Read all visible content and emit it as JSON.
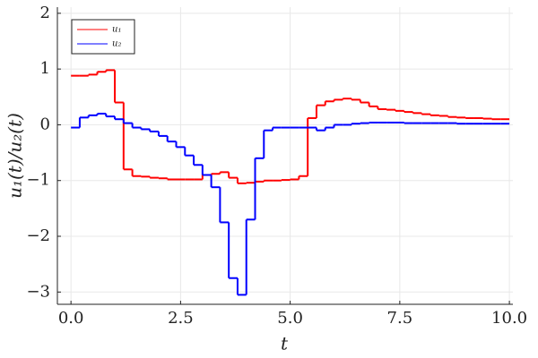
{
  "chart_data": {
    "type": "step",
    "x_label": "t",
    "y_label": "u₁(t)/u₂(t)",
    "x": [
      0,
      0.2,
      0.4,
      0.6,
      0.8,
      1.0,
      1.2,
      1.4,
      1.6,
      1.8,
      2.0,
      2.2,
      2.4,
      2.6,
      2.8,
      3.0,
      3.2,
      3.4,
      3.6,
      3.8,
      4.0,
      4.2,
      4.4,
      4.6,
      4.8,
      5.0,
      5.2,
      5.4,
      5.6,
      5.8,
      6.0,
      6.2,
      6.4,
      6.6,
      6.8,
      7.0,
      7.2,
      7.4,
      7.6,
      7.8,
      8.0,
      8.2,
      8.4,
      8.6,
      8.8,
      9.0,
      9.2,
      9.4,
      9.6,
      9.8
    ],
    "series": [
      {
        "name": "u₁",
        "color": "#ff0000",
        "values": [
          0.88,
          0.88,
          0.9,
          0.95,
          0.98,
          0.4,
          -0.8,
          -0.92,
          -0.93,
          -0.95,
          -0.96,
          -0.98,
          -0.98,
          -0.98,
          -0.98,
          -0.9,
          -0.88,
          -0.85,
          -0.95,
          -1.05,
          -1.04,
          -1.02,
          -1.0,
          -1.0,
          -0.99,
          -0.98,
          -0.92,
          0.12,
          0.35,
          0.42,
          0.45,
          0.47,
          0.45,
          0.4,
          0.33,
          0.28,
          0.27,
          0.25,
          0.23,
          0.21,
          0.19,
          0.17,
          0.16,
          0.14,
          0.13,
          0.12,
          0.12,
          0.11,
          0.1,
          0.1
        ]
      },
      {
        "name": "u₂",
        "color": "#0000ff",
        "values": [
          -0.05,
          0.13,
          0.17,
          0.2,
          0.15,
          0.1,
          0.03,
          -0.05,
          -0.08,
          -0.12,
          -0.2,
          -0.3,
          -0.4,
          -0.55,
          -0.72,
          -0.9,
          -1.12,
          -1.75,
          -2.75,
          -3.05,
          -1.7,
          -0.6,
          -0.1,
          -0.05,
          -0.05,
          -0.05,
          -0.05,
          -0.05,
          -0.1,
          -0.05,
          0.0,
          0.0,
          0.02,
          0.03,
          0.04,
          0.04,
          0.04,
          0.04,
          0.03,
          0.03,
          0.03,
          0.03,
          0.03,
          0.03,
          0.02,
          0.02,
          0.02,
          0.02,
          0.02,
          0.02
        ]
      }
    ],
    "xlim": [
      -0.31,
      10.08
    ],
    "ylim": [
      -3.22,
      2.11
    ],
    "xticks": [
      {
        "value": 0,
        "label": "0.0"
      },
      {
        "value": 2.5,
        "label": "2.5"
      },
      {
        "value": 5,
        "label": "5.0"
      },
      {
        "value": 7.5,
        "label": "7.5"
      },
      {
        "value": 10,
        "label": "10.0"
      }
    ],
    "yticks": [
      {
        "value": -3,
        "label": "−3"
      },
      {
        "value": -2,
        "label": "−2"
      },
      {
        "value": -1,
        "label": "−1"
      },
      0,
      1,
      2
    ],
    "grid": true,
    "legend": "top-left"
  }
}
